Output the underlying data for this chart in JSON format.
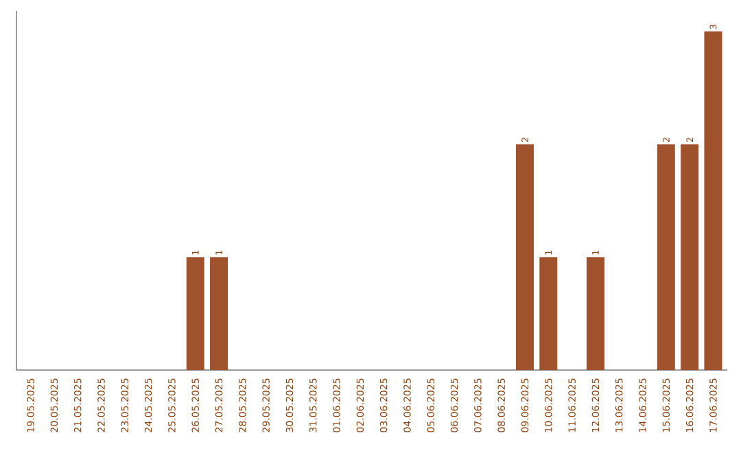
{
  "chart_data": {
    "type": "bar",
    "color": "#a0522d",
    "categories": [
      "19.05.2025",
      "20.05.2025",
      "21.05.2025",
      "22.05.2025",
      "23.05.2025",
      "24.05.2025",
      "25.05.2025",
      "26.05.2025",
      "27.05.2025",
      "28.05.2025",
      "29.05.2025",
      "30.05.2025",
      "31.05.2025",
      "01.06.2025",
      "02.06.2025",
      "03.06.2025",
      "04.06.2025",
      "05.06.2025",
      "06.06.2025",
      "07.06.2025",
      "08.06.2025",
      "09.06.2025",
      "10.06.2025",
      "11.06.2025",
      "12.06.2025",
      "13.06.2025",
      "14.06.2025",
      "15.06.2025",
      "16.06.2025",
      "17.06.2025"
    ],
    "values": [
      0,
      0,
      0,
      0,
      0,
      0,
      0,
      1,
      1,
      0,
      0,
      0,
      0,
      0,
      0,
      0,
      0,
      0,
      0,
      0,
      0,
      2,
      1,
      0,
      1,
      0,
      0,
      2,
      2,
      3
    ],
    "value_labels": [
      null,
      null,
      null,
      null,
      null,
      null,
      null,
      "1",
      "1",
      null,
      null,
      null,
      null,
      null,
      null,
      null,
      null,
      null,
      null,
      null,
      null,
      "2",
      "1",
      null,
      "1",
      null,
      null,
      "2",
      "2",
      "3"
    ]
  }
}
